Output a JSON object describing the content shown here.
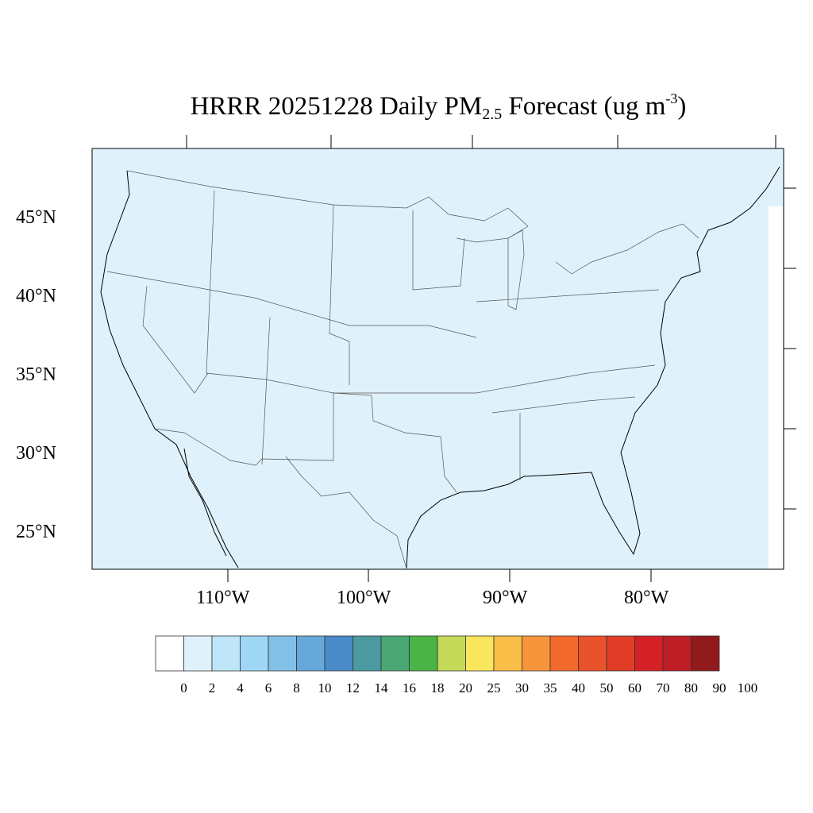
{
  "title": {
    "prefix": "HRRR 20251228 Daily PM",
    "subscript": "2.5",
    "suffix": " Forecast (ug m",
    "superscript": "-3",
    "close": ")"
  },
  "map": {
    "background_color": "#dff2fb",
    "lat_labels": [
      "45°N",
      "40°N",
      "35°N",
      "30°N",
      "25°N"
    ],
    "lon_labels": [
      "110°W",
      "100°W",
      "90°W",
      "80°W"
    ]
  },
  "colorbar": {
    "colors": [
      "#ffffff",
      "#dff2fb",
      "#bfe6f8",
      "#9fd8f5",
      "#82c0e8",
      "#66a8d9",
      "#4a8ac8",
      "#4a9a9f",
      "#4aa672",
      "#4ab546",
      "#86c54c",
      "#c5d958",
      "#f9e65c",
      "#f8be48",
      "#f7953c",
      "#f46a2c",
      "#e9522b",
      "#e03c28",
      "#d42128",
      "#be1e26",
      "#ab1c22",
      "#911a1c"
    ],
    "labels": [
      "0",
      "2",
      "4",
      "6",
      "8",
      "10",
      "12",
      "14",
      "16",
      "18",
      "20",
      "25",
      "30",
      "35",
      "40",
      "50",
      "60",
      "70",
      "80",
      "90",
      "100"
    ]
  }
}
